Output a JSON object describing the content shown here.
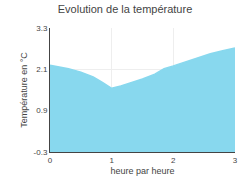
{
  "chart_data": {
    "type": "area",
    "title": "Evolution de la température",
    "xlabel": "heure par heure",
    "ylabel": "Température en °C",
    "x": [
      0,
      0.15,
      0.3,
      0.5,
      0.7,
      0.85,
      1.0,
      1.15,
      1.3,
      1.5,
      1.7,
      1.85,
      2.0,
      2.2,
      2.4,
      2.6,
      2.8,
      3.0
    ],
    "values": [
      2.22,
      2.18,
      2.12,
      2.02,
      1.88,
      1.72,
      1.55,
      1.62,
      1.7,
      1.82,
      1.96,
      2.12,
      2.2,
      2.32,
      2.44,
      2.55,
      2.64,
      2.72
    ],
    "xlim": [
      0,
      3
    ],
    "ylim": [
      -0.3,
      3.3
    ],
    "xticks": [
      0,
      1,
      2,
      3
    ],
    "yticks": [
      -0.3,
      0.9,
      2.1,
      3.3
    ],
    "color": "#88d8ee",
    "grid": true
  }
}
